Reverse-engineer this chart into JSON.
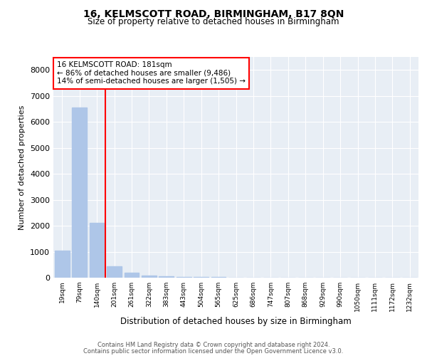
{
  "title_line1": "16, KELMSCOTT ROAD, BIRMINGHAM, B17 8QN",
  "title_line2": "Size of property relative to detached houses in Birmingham",
  "xlabel": "Distribution of detached houses by size in Birmingham",
  "ylabel": "Number of detached properties",
  "categories": [
    "19sqm",
    "79sqm",
    "140sqm",
    "201sqm",
    "261sqm",
    "322sqm",
    "383sqm",
    "443sqm",
    "504sqm",
    "565sqm",
    "625sqm",
    "686sqm",
    "747sqm",
    "807sqm",
    "868sqm",
    "929sqm",
    "990sqm",
    "1050sqm",
    "1111sqm",
    "1172sqm",
    "1232sqm"
  ],
  "values": [
    1050,
    6550,
    2100,
    430,
    200,
    90,
    50,
    30,
    20,
    15,
    10,
    8,
    6,
    5,
    4,
    3,
    3,
    2,
    2,
    1,
    1
  ],
  "bar_color": "#aec6e8",
  "vline_x": 2.5,
  "vline_color": "red",
  "annotation_text": "16 KELMSCOTT ROAD: 181sqm\n← 86% of detached houses are smaller (9,486)\n14% of semi-detached houses are larger (1,505) →",
  "annotation_box_color": "white",
  "annotation_box_edge_color": "red",
  "ylim": [
    0,
    8500
  ],
  "yticks": [
    0,
    1000,
    2000,
    3000,
    4000,
    5000,
    6000,
    7000,
    8000
  ],
  "footer_line1": "Contains HM Land Registry data © Crown copyright and database right 2024.",
  "footer_line2": "Contains public sector information licensed under the Open Government Licence v3.0.",
  "plot_bg_color": "#e8eef5"
}
